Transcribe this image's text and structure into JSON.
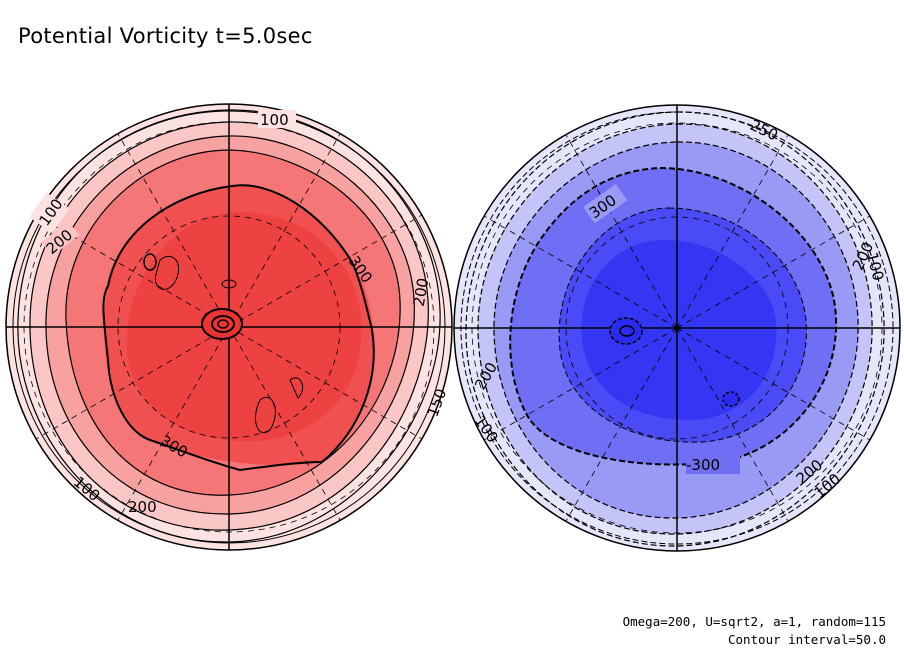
{
  "title": "Potential Vorticity t=5.0sec",
  "footnotes": {
    "params": "Omega=200, U=sqrt2, a=1, random=115",
    "contour_interval": "Contour interval=50.0"
  },
  "chart_data": [
    {
      "type": "heatmap",
      "projection": "polar",
      "hemisphere": "north",
      "colormap": "reds",
      "sign": "positive",
      "levels": [
        100,
        150,
        200,
        250,
        300
      ],
      "contour_labels": [
        "100",
        "100",
        "200",
        "300",
        "200",
        "150",
        "300",
        "100",
        "200"
      ],
      "colors": [
        "#fde2e2",
        "#fbc6c6",
        "#f8a1a1",
        "#f57676",
        "#f15050",
        "#ee4242"
      ]
    },
    {
      "type": "heatmap",
      "projection": "polar",
      "hemisphere": "south",
      "colormap": "blues",
      "sign": "negative",
      "levels": [
        -100,
        -150,
        -200,
        -250,
        -300
      ],
      "contour_labels": [
        "300",
        "200",
        "100",
        "-300",
        "200",
        "100",
        "200",
        "100",
        "250"
      ],
      "colors": [
        "#e6e6fb",
        "#c4c4f8",
        "#9999f6",
        "#6f6ff5",
        "#4a4af6",
        "#3535f4"
      ]
    }
  ]
}
